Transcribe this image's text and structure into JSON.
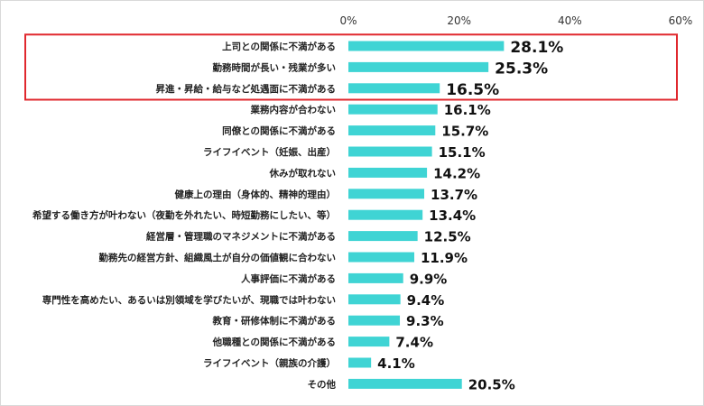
{
  "chart_data": {
    "type": "bar",
    "orientation": "horizontal",
    "title": "",
    "xlabel": "",
    "ylabel": "",
    "xlim": [
      0,
      60
    ],
    "ticks": [
      "0%",
      "20%",
      "40%",
      "60%"
    ],
    "tick_values": [
      0,
      20,
      40,
      60
    ],
    "grid": false,
    "bar_color": "#3fd4d4",
    "highlight_color": "#e0282e",
    "highlighted_count": 3,
    "categories": [
      "上司との関係に不満がある",
      "勤務時間が長い・残業が多い",
      "昇進・昇給・給与など処遇面に不満がある",
      "業務内容が合わない",
      "同僚との関係に不満がある",
      "ライフイベント（妊娠、出産）",
      "休みが取れない",
      "健康上の理由（身体的、精神的理由）",
      "希望する働き方が叶わない（夜勤を外れたい、時短勤務にしたい、等）",
      "経営層・管理職のマネジメントに不満がある",
      "勤務先の経営方針、組織風土が自分の価値観に合わない",
      "人事評価に不満がある",
      "専門性を高めたい、あるいは別領域を学びたいが、現職では叶わない",
      "教育・研修体制に不満がある",
      "他職種との関係に不満がある",
      "ライフイベント（親族の介護）",
      "その他"
    ],
    "values": [
      28.1,
      25.3,
      16.5,
      16.1,
      15.7,
      15.1,
      14.2,
      13.7,
      13.4,
      12.5,
      11.9,
      9.9,
      9.4,
      9.3,
      7.4,
      4.1,
      20.5
    ],
    "value_labels": [
      "28.1%",
      "25.3%",
      "16.5%",
      "16.1%",
      "15.7%",
      "15.1%",
      "14.2%",
      "13.7%",
      "13.4%",
      "12.5%",
      "11.9%",
      "9.9%",
      "9.4%",
      "9.3%",
      "7.4%",
      "4.1%",
      "20.5%"
    ]
  }
}
